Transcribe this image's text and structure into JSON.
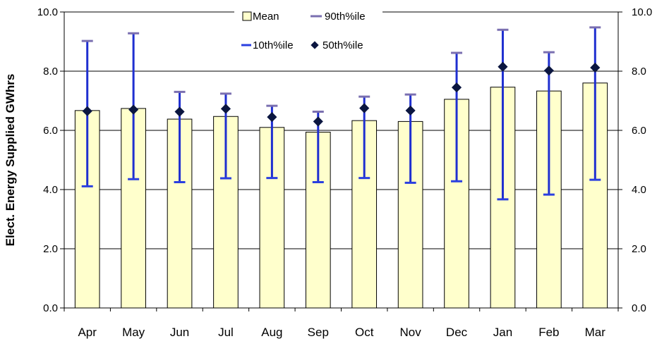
{
  "chart_data": {
    "type": "bar",
    "title": "",
    "xlabel": "",
    "ylabel": "Elect. Energy Supplied GWhrs",
    "ylim": [
      0,
      10
    ],
    "yticks": [
      "0.0",
      "2.0",
      "4.0",
      "6.0",
      "8.0",
      "10.0"
    ],
    "categories": [
      "Apr",
      "May",
      "Jun",
      "Jul",
      "Aug",
      "Sep",
      "Oct",
      "Nov",
      "Dec",
      "Jan",
      "Feb",
      "Mar"
    ],
    "series": [
      {
        "name": "Mean",
        "kind": "bar",
        "color": "#FFFFCC",
        "values": [
          6.67,
          6.74,
          6.38,
          6.47,
          6.1,
          5.94,
          6.33,
          6.3,
          7.05,
          7.46,
          7.33,
          7.6
        ]
      },
      {
        "name": "90th%ile",
        "kind": "whisker-top",
        "color": "#7A6FB0",
        "values": [
          9.02,
          9.28,
          7.3,
          7.24,
          6.83,
          6.63,
          7.14,
          7.21,
          8.62,
          9.4,
          8.64,
          9.48
        ]
      },
      {
        "name": "10th%ile",
        "kind": "whisker-bottom",
        "color": "#2A3FE0",
        "values": [
          4.11,
          4.35,
          4.25,
          4.38,
          4.39,
          4.25,
          4.39,
          4.23,
          4.28,
          3.67,
          3.83,
          4.33
        ]
      },
      {
        "name": "50th%ile",
        "kind": "marker",
        "color": "#0B1640",
        "values": [
          6.65,
          6.7,
          6.63,
          6.73,
          6.45,
          6.3,
          6.75,
          6.67,
          7.45,
          8.15,
          8.02,
          8.12
        ]
      }
    ],
    "grid": true,
    "legend_position": "top-center",
    "secondary_axis": true
  }
}
